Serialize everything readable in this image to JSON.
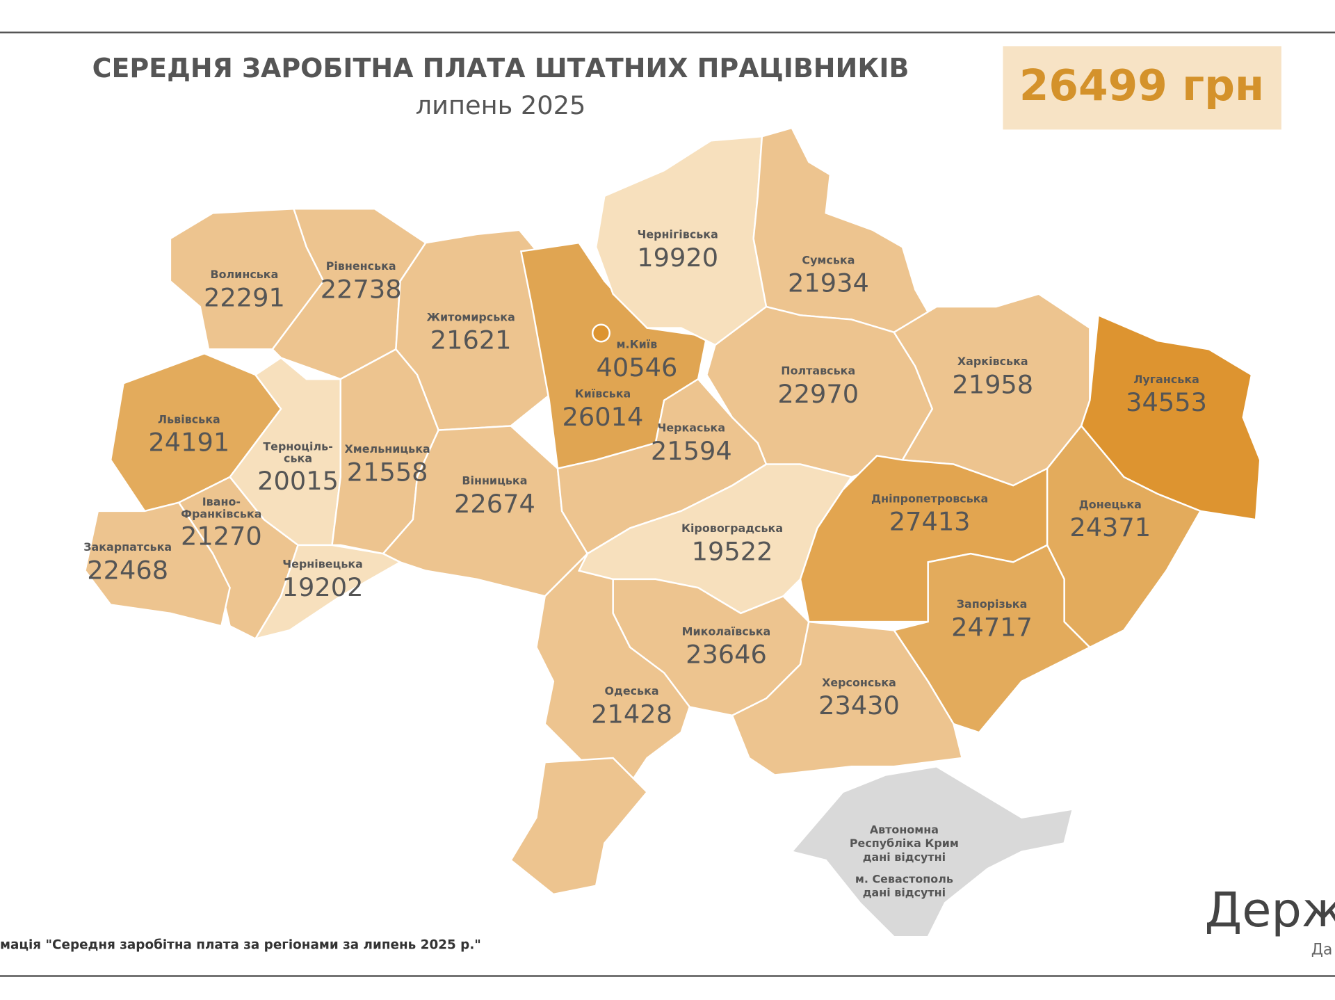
{
  "header": {
    "title": "СЕРЕДНЯ ЗАРОБІТНА ПЛАТА ШТАТНИХ ПРАЦІВНИКІВ",
    "subtitle": "липень 2025",
    "average": "26499 грн"
  },
  "map": {
    "regions": [
      {
        "name": "Волинська",
        "value": 22291,
        "color": "#edc48f"
      },
      {
        "name": "Рівненська",
        "value": 22738,
        "color": "#edc48f"
      },
      {
        "name": "Житомирська",
        "value": 21621,
        "color": "#edc48f"
      },
      {
        "name": "Київська",
        "value": 26014,
        "color": "#e0a552"
      },
      {
        "name": "Чернігівська",
        "value": 19920,
        "color": "#f7e0bd"
      },
      {
        "name": "Сумська",
        "value": 21934,
        "color": "#edc48f"
      },
      {
        "name": "Львівська",
        "value": 24191,
        "color": "#e3ab5c"
      },
      {
        "name": [
          "Терноціль-",
          "ська"
        ],
        "value": 20015,
        "color": "#f7e0bd"
      },
      {
        "name": "Хмельницька",
        "value": 21558,
        "color": "#edc48f"
      },
      {
        "name": "Вінницька",
        "value": 22674,
        "color": "#edc48f"
      },
      {
        "name": "Черкаська",
        "value": 21594,
        "color": "#edc48f"
      },
      {
        "name": "Полтавська",
        "value": 22970,
        "color": "#edc48f"
      },
      {
        "name": "Харківська",
        "value": 21958,
        "color": "#edc48f"
      },
      {
        "name": "Луганська",
        "value": 34553,
        "color": "#dd9430"
      },
      {
        "name": [
          "Івано-",
          "Франківська"
        ],
        "value": 21270,
        "color": "#edc48f"
      },
      {
        "name": "Закарпатська",
        "value": 22468,
        "color": "#edc48f"
      },
      {
        "name": "Чернівецька",
        "value": 19202,
        "color": "#f7e0bd"
      },
      {
        "name": "Кіровоградська",
        "value": 19522,
        "color": "#f7e0bd"
      },
      {
        "name": "Дніпропетровська",
        "value": 27413,
        "color": "#e2a550"
      },
      {
        "name": "Донецька",
        "value": 24371,
        "color": "#e3ab5c"
      },
      {
        "name": "Запорізька",
        "value": 24717,
        "color": "#e3ab5c"
      },
      {
        "name": "Миколаївська",
        "value": 23646,
        "color": "#edc48f"
      },
      {
        "name": "Одеська",
        "value": 21428,
        "color": "#edc48f"
      },
      {
        "name": "Херсонська",
        "value": 23430,
        "color": "#edc48f"
      }
    ],
    "city": {
      "name": "м.Київ",
      "value": 40546
    },
    "crimea": {
      "lines": [
        "Автономна",
        "Республіка Крим",
        "дані відсутні",
        "м. Севастополь",
        "дані відсутні"
      ],
      "color": "#d9d9d9"
    }
  },
  "footer": {
    "source": "мація \"Середня заробітна плата за регіонами за липень 2025 р.\"",
    "logo": "Держ",
    "logo_sub": "Да"
  }
}
